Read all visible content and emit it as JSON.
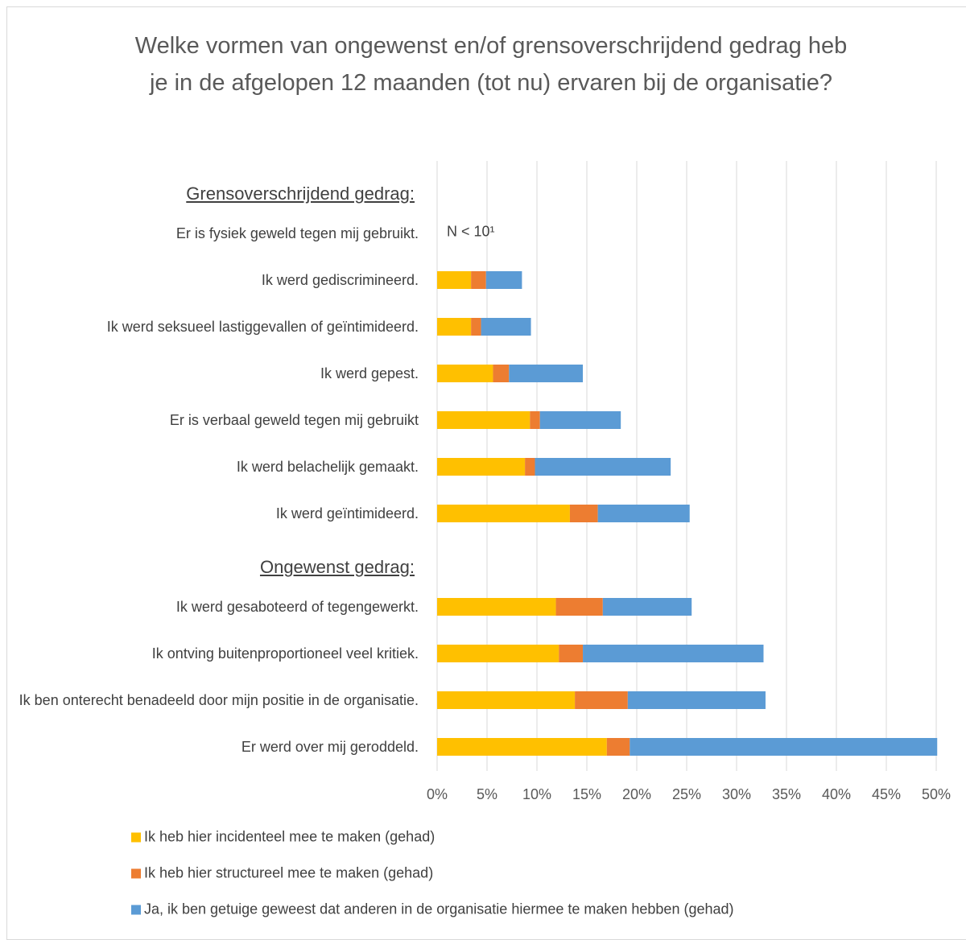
{
  "chart_data": {
    "type": "stacked-barh",
    "title": "Welke vormen van ongewenst en/of grensoverschrijdend gedrag heb je in de afgelopen 12 maanden (tot nu) ervaren bij de organisatie?",
    "groups": [
      {
        "title": "Grensoverschrijdend gedrag:",
        "categories": [
          "Er is fysiek geweld tegen mij gebruikt.",
          "Ik werd gediscrimineerd.",
          "Ik werd seksueel lastiggevallen of geïntimideerd.",
          "Ik werd gepest.",
          "Er is verbaal geweld tegen mij gebruikt",
          "Ik werd belachelijk gemaakt.",
          "Ik werd geïntimideerd."
        ]
      },
      {
        "title": "Ongewenst gedrag:",
        "categories": [
          "Ik werd gesaboteerd of tegengewerkt.",
          "Ik ontving buitenproportioneel veel kritiek.",
          "Ik ben onterecht benadeeld door mijn positie in de organisatie.",
          "Er werd over mij geroddeld."
        ]
      }
    ],
    "annotation": "N < 10¹",
    "series": [
      {
        "name": "Ik heb hier incidenteel mee te maken (gehad)",
        "color": "#FFC000",
        "values": [
          null,
          3.4,
          3.4,
          5.6,
          9.3,
          8.8,
          13.3,
          11.9,
          12.2,
          13.8,
          17.0
        ]
      },
      {
        "name": "Ik heb hier structureel mee te maken (gehad)",
        "color": "#ED7D31",
        "values": [
          null,
          1.5,
          1.0,
          1.6,
          1.0,
          1.0,
          2.8,
          4.7,
          2.4,
          5.3,
          2.3
        ]
      },
      {
        "name": "Ja, ik ben getuige geweest dat anderen in de organisatie hiermee te maken hebben (gehad)",
        "color": "#5B9BD5",
        "values": [
          null,
          3.6,
          5.0,
          7.4,
          8.1,
          13.6,
          9.2,
          8.9,
          18.1,
          13.8,
          30.8
        ]
      }
    ],
    "xlim": [
      0,
      50
    ],
    "xticks": [
      {
        "value": 0,
        "label": "0%"
      },
      {
        "value": 5,
        "label": "5%"
      },
      {
        "value": 10,
        "label": "10%"
      },
      {
        "value": 15,
        "label": "15%"
      },
      {
        "value": 20,
        "label": "20%"
      },
      {
        "value": 25,
        "label": "25%"
      },
      {
        "value": 30,
        "label": "30%"
      },
      {
        "value": 35,
        "label": "35%"
      },
      {
        "value": 40,
        "label": "40%"
      },
      {
        "value": 45,
        "label": "45%"
      },
      {
        "value": 50,
        "label": "50%"
      }
    ],
    "grid": true,
    "legend": "bottom"
  }
}
